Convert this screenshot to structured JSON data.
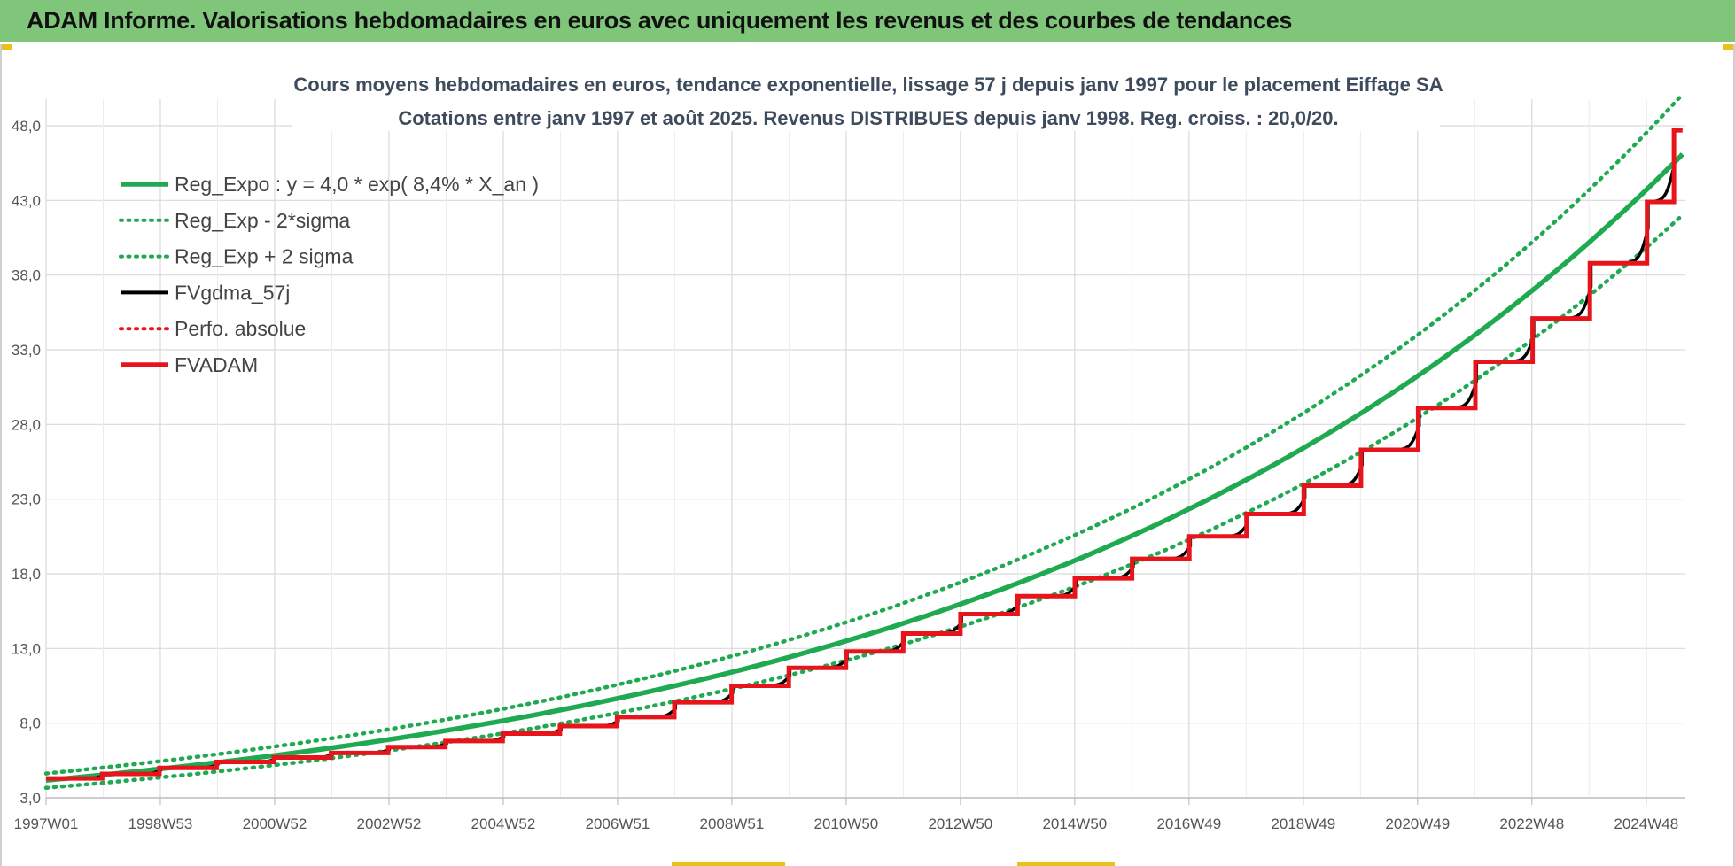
{
  "header": {
    "title": "ADAM Informe. Valorisations hebdomadaires en euros avec uniquement les revenus et des courbes de tendances"
  },
  "colors": {
    "header_bg": "#7fc67b",
    "reg_expo": "#1faa52",
    "fvgdma": "#000000",
    "fvadam": "#e8141b",
    "perfo": "#e8141b",
    "grid": "#d9d9d9"
  },
  "chart_data": {
    "type": "line",
    "title_lines": [
      "Cours moyens hebdomadaires en euros, tendance exponentielle, lissage 57 j depuis janv 1997 pour le placement Eiffage SA",
      "Cotations entre janv 1997 et août 2025.  Revenus DISTRIBUES depuis janv 1998. Reg. croiss. : 20,0/20."
    ],
    "xlabel": "",
    "ylabel": "",
    "ylim": [
      3.0,
      48.0
    ],
    "y_ticks": [
      "3,0",
      "8,0",
      "13,0",
      "18,0",
      "23,0",
      "28,0",
      "33,0",
      "38,0",
      "43,0",
      "48,0"
    ],
    "y_tick_values": [
      3,
      8,
      13,
      18,
      23,
      28,
      33,
      38,
      43,
      48
    ],
    "x_ticks": [
      "1997W01",
      "1998W53",
      "2000W52",
      "2002W52",
      "2004W52",
      "2006W51",
      "2008W51",
      "2010W50",
      "2012W50",
      "2014W50",
      "2016W49",
      "2018W49",
      "2020W49",
      "2022W48",
      "2024W48"
    ],
    "x_range_years": [
      1997.0,
      2025.65
    ],
    "grid": true,
    "legend_position": "top-left",
    "legend": [
      {
        "label": "Reg_Expo : y = 4,0 * exp( 8,4% *  X_an )",
        "color": "#1faa52",
        "style": "solid-thick"
      },
      {
        "label": "Reg_Exp - 2*sigma",
        "color": "#1faa52",
        "style": "dotted"
      },
      {
        "label": "Reg_Exp + 2 sigma",
        "color": "#1faa52",
        "style": "dotted"
      },
      {
        "label": "FVgdma_57j",
        "color": "#000000",
        "style": "solid"
      },
      {
        "label": "Perfo. absolue",
        "color": "#e8141b",
        "style": "dotted"
      },
      {
        "label": "FVADAM",
        "color": "#e8141b",
        "style": "solid-thick"
      }
    ],
    "regression": {
      "a": 4.0,
      "rate": 0.084,
      "sigma_factor_low": 0.915,
      "sigma_factor_high": 1.085
    },
    "fvadam_steps": {
      "x": [
        1997.0,
        1998.0,
        1999.0,
        2000.0,
        2001.0,
        2002.0,
        2003.0,
        2004.0,
        2005.0,
        2006.0,
        2007.0,
        2008.0,
        2009.0,
        2010.0,
        2011.0,
        2012.0,
        2013.0,
        2014.0,
        2015.0,
        2016.0,
        2017.0,
        2018.0,
        2019.0,
        2020.0,
        2021.0,
        2022.0,
        2023.0,
        2024.0,
        2025.0
      ],
      "y": [
        4.3,
        4.6,
        5.0,
        5.4,
        5.7,
        6.0,
        6.4,
        6.8,
        7.3,
        7.8,
        8.4,
        9.4,
        10.5,
        11.7,
        12.8,
        14.0,
        15.3,
        16.5,
        17.7,
        19.0,
        20.5,
        22.0,
        23.9,
        26.3,
        29.1,
        32.2,
        35.1,
        38.8,
        42.9
      ],
      "end_x": 2025.45,
      "end_y": 47.7
    },
    "fvgdma_end_y": 47.0
  }
}
